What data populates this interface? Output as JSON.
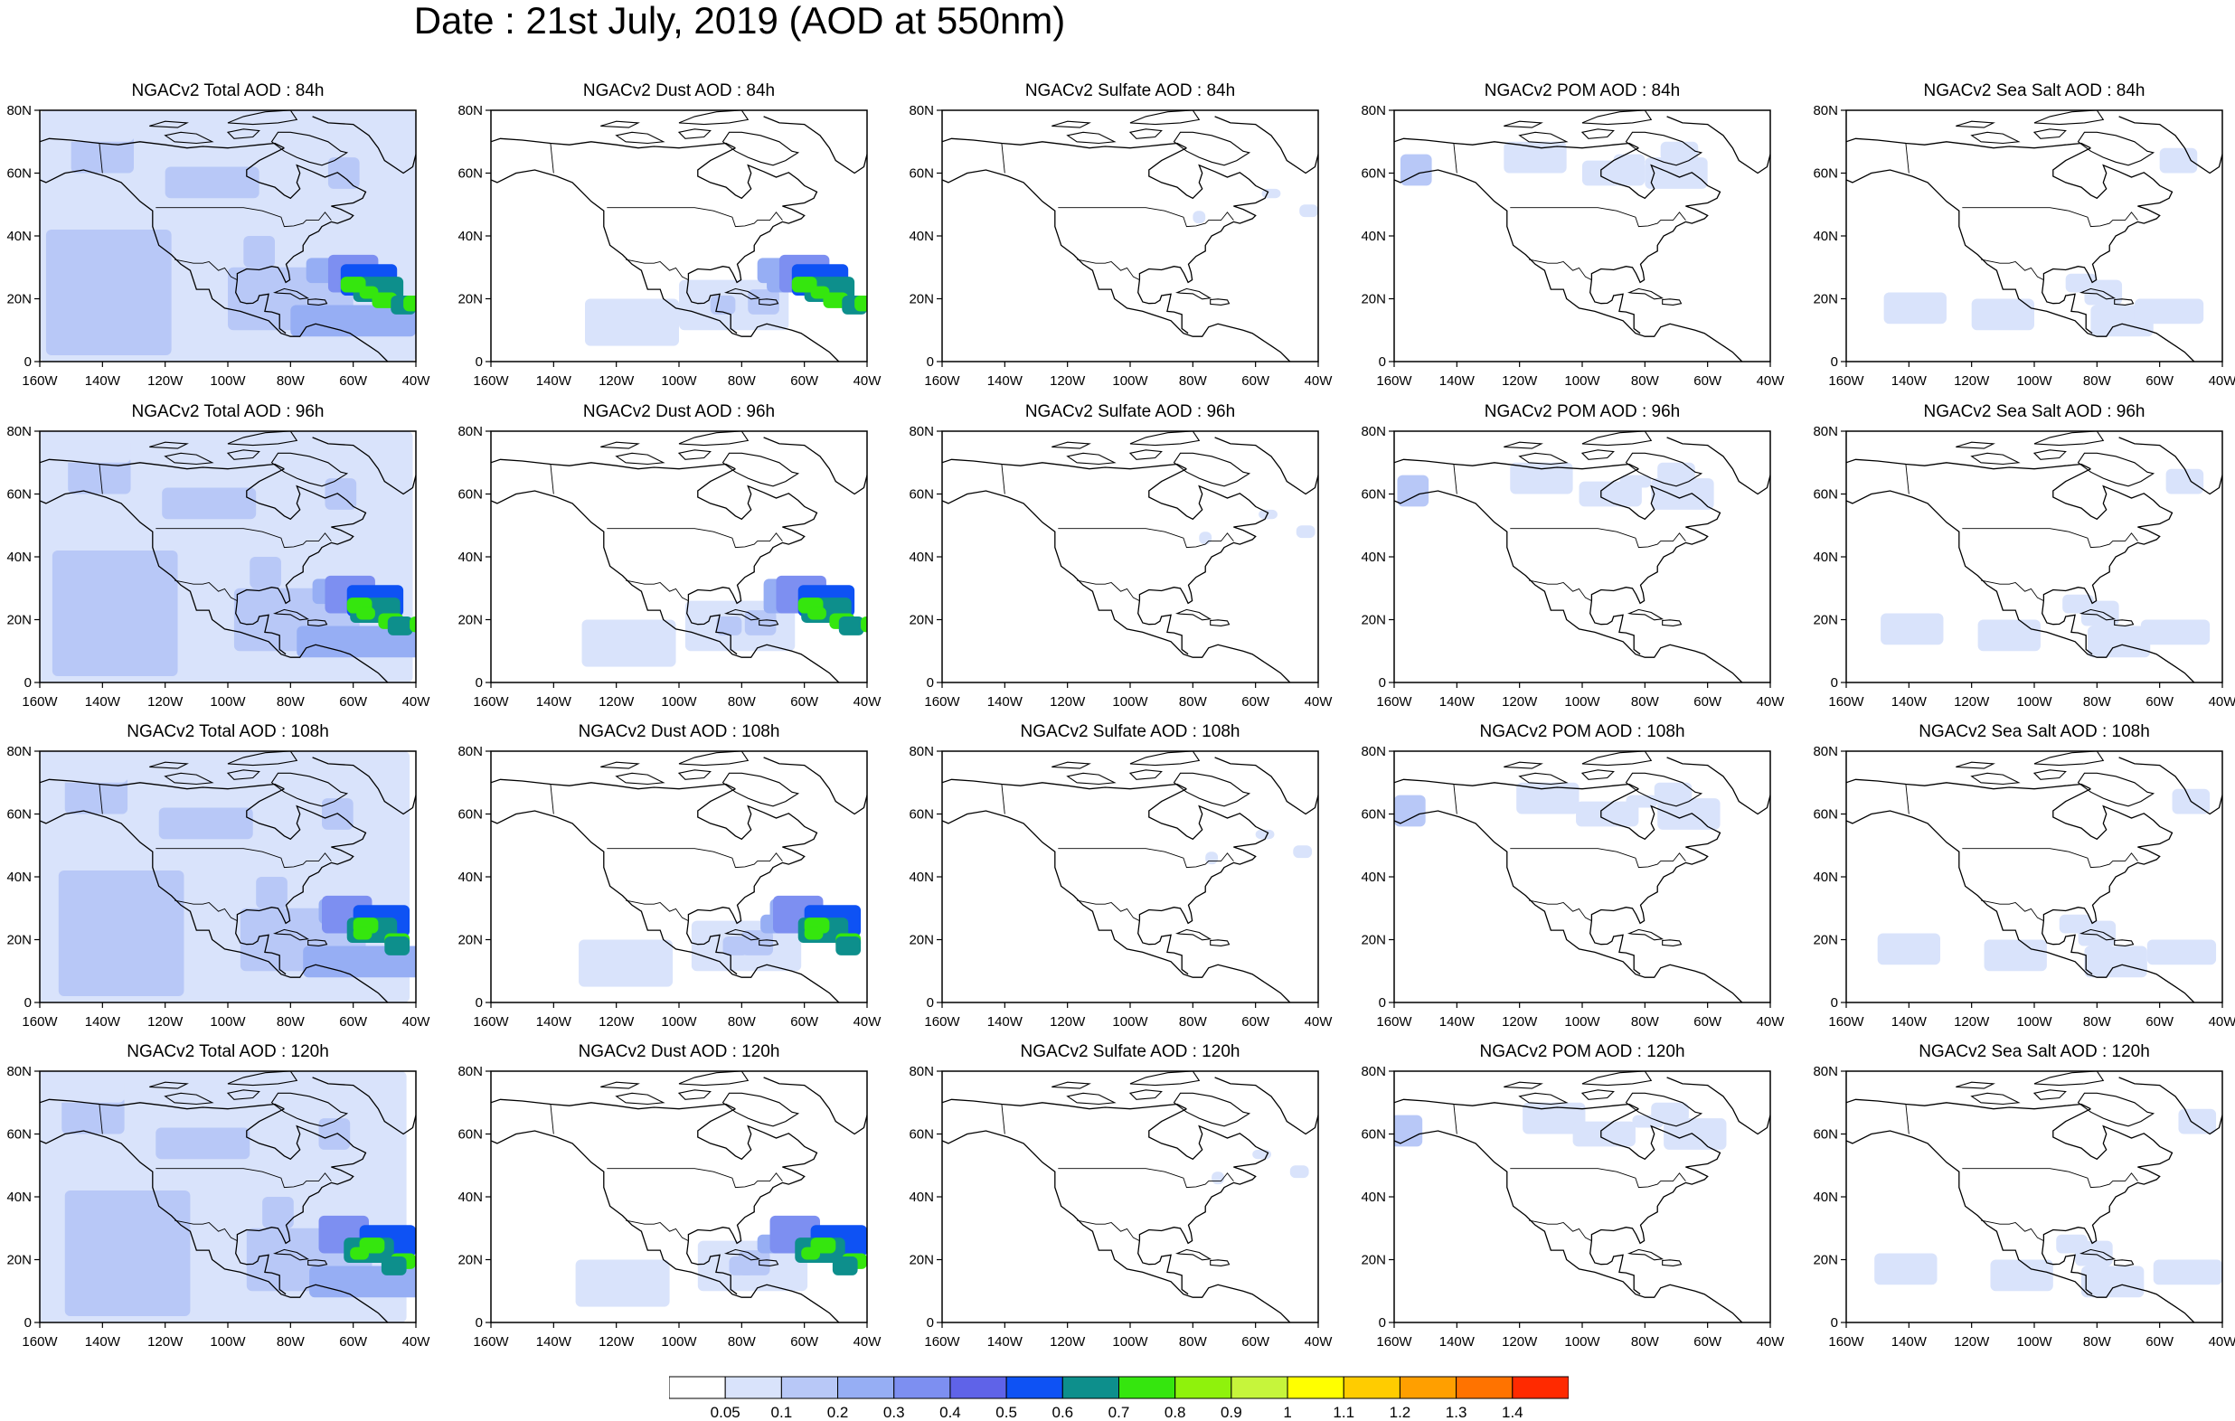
{
  "title": "Date : 21st July, 2019 (AOD at 550nm)",
  "lon_labels": [
    "160W",
    "140W",
    "120W",
    "100W",
    "80W",
    "60W",
    "40W"
  ],
  "lat_labels": [
    "0",
    "20N",
    "40N",
    "60N",
    "80N"
  ],
  "rows": [
    {
      "hour": "84h",
      "titles": [
        "NGACv2 Total AOD : 84h",
        "NGACv2 Dust AOD : 84h",
        "NGACv2 Sulfate AOD : 84h",
        "NGACv2 POM AOD : 84h",
        "NGACv2 Sea Salt AOD : 84h"
      ]
    },
    {
      "hour": "96h",
      "titles": [
        "NGACv2 Total AOD : 96h",
        "NGACv2 Dust AOD : 96h",
        "NGACv2 Sulfate AOD : 96h",
        "NGACv2 POM AOD : 96h",
        "NGACv2 Sea Salt AOD : 96h"
      ]
    },
    {
      "hour": "108h",
      "titles": [
        "NGACv2 Total AOD : 108h",
        "NGACv2 Dust AOD : 108h",
        "NGACv2 Sulfate AOD : 108h",
        "NGACv2 POM AOD : 108h",
        "NGACv2 Sea Salt AOD : 108h"
      ]
    },
    {
      "hour": "120h",
      "titles": [
        "NGACv2 Total AOD : 120h",
        "NGACv2 Dust AOD : 120h",
        "NGACv2 Sulfate AOD : 120h",
        "NGACv2 POM AOD : 120h",
        "NGACv2 Sea Salt  AOD : 120h"
      ]
    }
  ],
  "colorbar": {
    "colors": [
      "#ffffff",
      "#d9e3fb",
      "#b8c8f7",
      "#96aef4",
      "#7d8ff1",
      "#5f63e8",
      "#0e52f4",
      "#0d8f8c",
      "#35e60e",
      "#8ff20c",
      "#c6f53b",
      "#ffff00",
      "#ffcc00",
      "#ff9f00",
      "#ff7300",
      "#ff2a00"
    ],
    "labels": [
      "0.05",
      "0.1",
      "0.2",
      "0.3",
      "0.4",
      "0.5",
      "0.6",
      "0.7",
      "0.8",
      "0.9",
      "1",
      "1.1",
      "1.2",
      "1.3",
      "1.4"
    ]
  },
  "chart_data": {
    "type": "heatmap",
    "variable": "AOD at 550nm",
    "lon_range": [
      -160,
      -40
    ],
    "lat_range": [
      0,
      80
    ],
    "species": [
      "Total",
      "Dust",
      "Sulfate",
      "POM",
      "Sea Salt"
    ],
    "forecast_hours": [
      "84h",
      "96h",
      "108h",
      "120h"
    ],
    "levels": [
      0.05,
      0.1,
      0.2,
      0.3,
      0.4,
      0.5,
      0.6,
      0.7,
      0.8,
      0.9,
      1,
      1.1,
      1.2,
      1.3,
      1.4
    ]
  }
}
